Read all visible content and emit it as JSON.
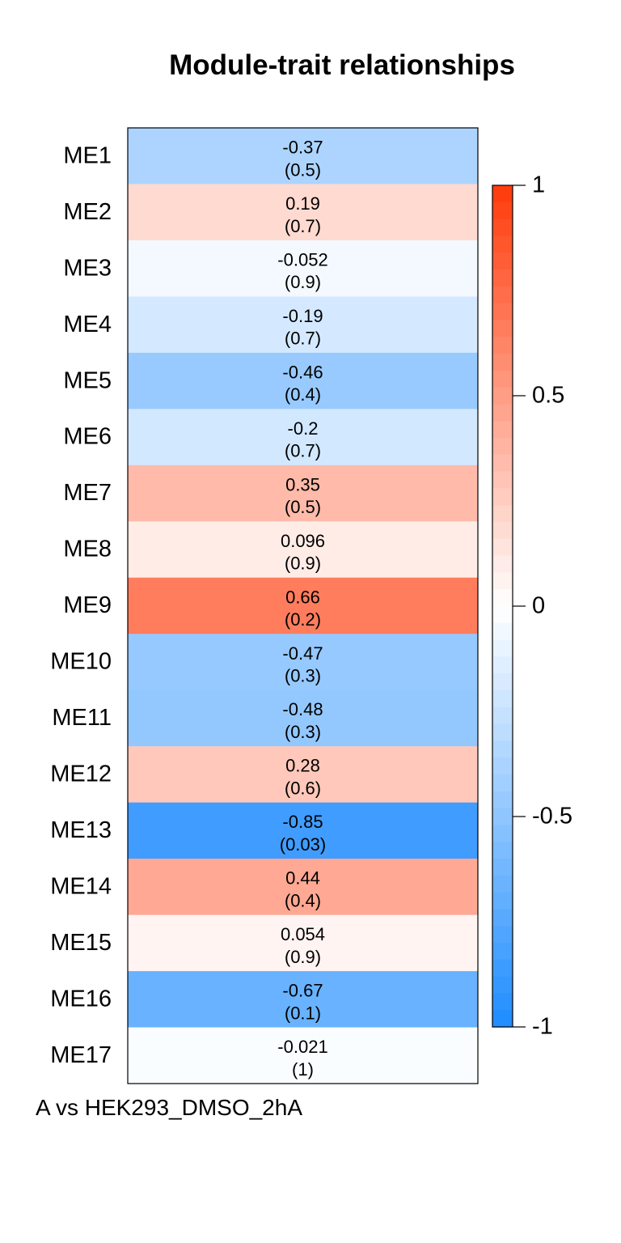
{
  "chart_data": {
    "type": "heatmap",
    "title": "Module-trait relationships",
    "rows": [
      "ME1",
      "ME2",
      "ME3",
      "ME4",
      "ME5",
      "ME6",
      "ME7",
      "ME8",
      "ME9",
      "ME10",
      "ME11",
      "ME12",
      "ME13",
      "ME14",
      "ME15",
      "ME16",
      "ME17"
    ],
    "columns": [
      "A vs HEK293_DMSO_2hA"
    ],
    "values": [
      -0.37,
      0.19,
      -0.052,
      -0.19,
      -0.46,
      -0.2,
      0.35,
      0.096,
      0.66,
      -0.47,
      -0.48,
      0.28,
      -0.85,
      0.44,
      0.054,
      -0.67,
      -0.021
    ],
    "value_labels": [
      "-0.37",
      "0.19",
      "-0.052",
      "-0.19",
      "-0.46",
      "-0.2",
      "0.35",
      "0.096",
      "0.66",
      "-0.47",
      "-0.48",
      "0.28",
      "-0.85",
      "0.44",
      "0.054",
      "-0.67",
      "-0.021"
    ],
    "p_labels": [
      "(0.5)",
      "(0.7)",
      "(0.9)",
      "(0.7)",
      "(0.4)",
      "(0.7)",
      "(0.5)",
      "(0.9)",
      "(0.2)",
      "(0.3)",
      "(0.3)",
      "(0.6)",
      "(0.03)",
      "(0.4)",
      "(0.9)",
      "(0.1)",
      "(1)"
    ],
    "color_scale": {
      "min": -1,
      "max": 1,
      "min_color": "#1e8cff",
      "mid_color": "#ffffff",
      "max_color": "#ff3a0a"
    },
    "colorbar_ticks": [
      1,
      0.5,
      0,
      -0.5,
      -1
    ],
    "colorbar_tick_labels": [
      "1",
      "0.5",
      "0",
      "-0.5",
      "-1"
    ],
    "legend": "right"
  }
}
